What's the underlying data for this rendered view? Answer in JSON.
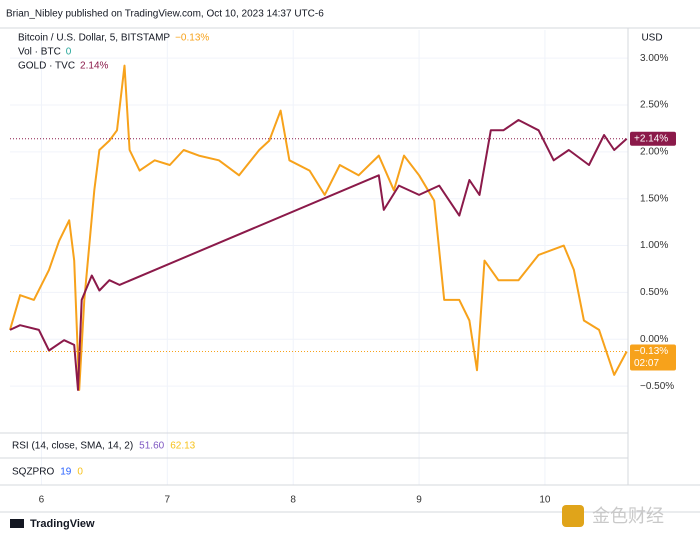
{
  "header": "Brian_Nibley published on TradingView.com, Oct 10, 2023 14:37 UTC-6",
  "chart_data": {
    "type": "line",
    "currency": "USD",
    "series": [
      {
        "name": "Bitcoin / U.S. Dollar, 5, BITSTAMP",
        "color": "#f7a21b",
        "change_label": "−0.13%",
        "tag_label": "−0.13%",
        "countdown": "02:07",
        "x": [
          5.75,
          5.83,
          5.94,
          6.06,
          6.14,
          6.22,
          6.26,
          6.3,
          6.34,
          6.42,
          6.46,
          6.54,
          6.6,
          6.66,
          6.7,
          6.78,
          6.9,
          7.02,
          7.13,
          7.25,
          7.41,
          7.57,
          7.73,
          7.81,
          7.9,
          7.97,
          8.13,
          8.25,
          8.37,
          8.52,
          8.68,
          8.8,
          8.88,
          9.0,
          9.12,
          9.16,
          9.2,
          9.32,
          9.4,
          9.46,
          9.52,
          9.63,
          9.79,
          9.95,
          10.15,
          10.23,
          10.31,
          10.43,
          10.55,
          10.65
        ],
        "values": [
          0.1,
          0.47,
          0.42,
          0.74,
          1.05,
          1.27,
          0.84,
          -0.54,
          0.42,
          1.59,
          2.02,
          2.12,
          2.23,
          2.92,
          2.02,
          1.8,
          1.91,
          1.86,
          2.02,
          1.96,
          1.91,
          1.75,
          2.02,
          2.12,
          2.44,
          1.91,
          1.8,
          1.54,
          1.86,
          1.75,
          1.96,
          1.59,
          1.96,
          1.75,
          1.48,
          0.95,
          0.42,
          0.42,
          0.2,
          -0.33,
          0.84,
          0.63,
          0.63,
          0.9,
          1.0,
          0.74,
          0.2,
          0.1,
          -0.38,
          -0.13
        ]
      },
      {
        "name": "GOLD · TVC",
        "color": "#8b1a4a",
        "change_label": "2.14%",
        "tag_label": "+2.14%",
        "x": [
          5.75,
          5.83,
          5.98,
          6.06,
          6.18,
          6.26,
          6.29,
          6.32,
          6.4,
          6.46,
          6.54,
          6.62,
          8.68,
          8.72,
          8.84,
          9.0,
          9.16,
          9.32,
          9.4,
          9.48,
          9.57,
          9.67,
          9.79,
          9.95,
          10.07,
          10.19,
          10.35,
          10.47,
          10.55,
          10.65
        ],
        "values": [
          0.1,
          0.15,
          0.1,
          -0.12,
          -0.01,
          -0.06,
          -0.54,
          0.42,
          0.68,
          0.52,
          0.63,
          0.58,
          1.75,
          1.38,
          1.64,
          1.54,
          1.64,
          1.32,
          1.7,
          1.54,
          2.23,
          2.23,
          2.34,
          2.23,
          1.91,
          2.02,
          1.86,
          2.18,
          2.02,
          2.14
        ]
      }
    ],
    "volume": {
      "name": "Vol · BTC",
      "value": 0
    },
    "ylim": [
      -1.0,
      3.3
    ],
    "yticks": [
      {
        "value": 3,
        "label": "3.00%"
      },
      {
        "value": 2.5,
        "label": "2.50%"
      },
      {
        "value": 2,
        "label": "2.00%"
      },
      {
        "value": 1.5,
        "label": "1.50%"
      },
      {
        "value": 1,
        "label": "1.00%"
      },
      {
        "value": 0.5,
        "label": "0.50%"
      },
      {
        "value": 0,
        "label": "0.00%"
      },
      {
        "value": -0.5,
        "label": "−0.50%"
      }
    ],
    "xlim": [
      5.75,
      10.66
    ],
    "xticks": [
      6,
      7,
      8,
      9,
      10
    ],
    "grid": true,
    "indicators": [
      {
        "name": "RSI (14, close, SMA, 14, 2)",
        "values": [
          {
            "value": 51.6,
            "label": "51.60",
            "color": "#7e57c2"
          },
          {
            "value": 62.13,
            "label": "62.13",
            "color": "#f7c21b"
          }
        ]
      },
      {
        "name": "SQZPRO",
        "values": [
          {
            "value": 19,
            "label": "19",
            "color": "#2962ff"
          },
          {
            "value": 0,
            "label": "0",
            "color": "#f7c21b"
          }
        ]
      }
    ]
  },
  "footer": {
    "brand": "TradingView",
    "watermark": "金色财经"
  }
}
